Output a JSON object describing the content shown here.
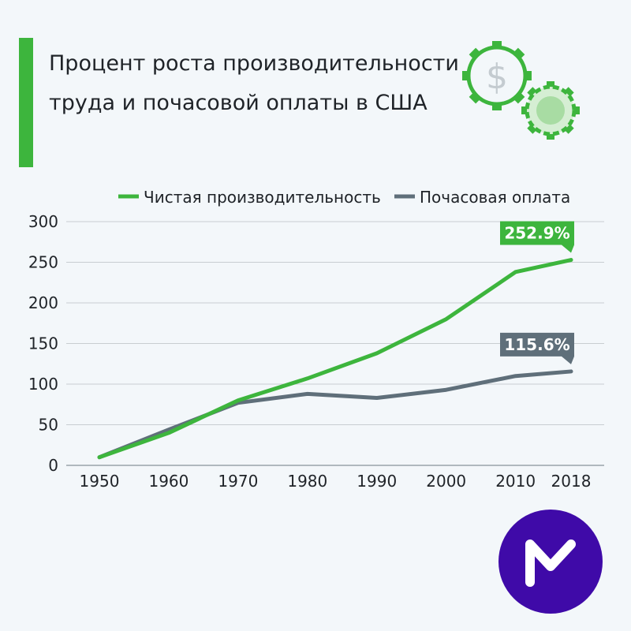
{
  "title": {
    "line1": "Процент роста производительности",
    "line2": "труда и почасовой оплаты в США"
  },
  "icons": {
    "gear_dollar": "gear-dollar-icon",
    "gear": "gear-icon",
    "logo": "m-logo-icon"
  },
  "colors": {
    "accent": "#3db53d",
    "productivity": "#3db53d",
    "wages": "#5f6f7a",
    "logo_bg": "#3f0aa8",
    "background": "#f3f7fa"
  },
  "chart_data": {
    "type": "line",
    "x": [
      "1950",
      "1960",
      "1970",
      "1980",
      "1990",
      "2000",
      "2010",
      "2018"
    ],
    "x_numeric": [
      1950,
      1960,
      1970,
      1980,
      1990,
      2000,
      2010,
      2018
    ],
    "ylim": [
      0,
      300
    ],
    "yticks": [
      0,
      50,
      100,
      150,
      200,
      250,
      300
    ],
    "grid": true,
    "legend_position": "top",
    "series": [
      {
        "name": "Чистая производительность",
        "color": "#3db53d",
        "values": [
          10,
          40,
          80,
          107,
          138,
          180,
          238,
          252.9
        ],
        "end_label": "252.9%"
      },
      {
        "name": "Почасовая оплата",
        "color": "#5f6f7a",
        "values": [
          10,
          44,
          77,
          88,
          83,
          93,
          110,
          115.6
        ],
        "end_label": "115.6%"
      }
    ]
  }
}
